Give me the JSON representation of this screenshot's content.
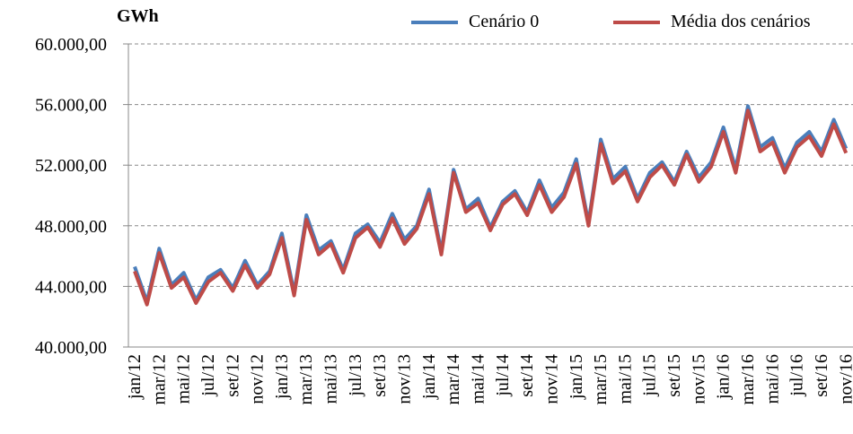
{
  "chart_data": {
    "type": "line",
    "title": "GWh",
    "categories": [
      "jan/12",
      null,
      "mar/12",
      null,
      "mai/12",
      null,
      "jul/12",
      null,
      "set/12",
      null,
      "nov/12",
      null,
      "jan/13",
      null,
      "mar/13",
      null,
      "mai/13",
      null,
      "jul/13",
      null,
      "set/13",
      null,
      "nov/13",
      null,
      "jan/14",
      null,
      "mar/14",
      null,
      "mai/14",
      null,
      "jul/14",
      null,
      "set/14",
      null,
      "nov/14",
      null,
      "jan/15",
      null,
      "mar/15",
      null,
      "mai/15",
      null,
      "jul/15",
      null,
      "set/15",
      null,
      "nov/15",
      null,
      "jan/16",
      null,
      "mar/16",
      null,
      "mai/16",
      null,
      "jul/16",
      null,
      "set/16",
      null,
      "nov/16"
    ],
    "series": [
      {
        "name": "Cenário 0",
        "color": "#4a7ebb",
        "values": [
          45300,
          43000,
          46500,
          44100,
          44900,
          43100,
          44600,
          45100,
          43900,
          45700,
          44100,
          45000,
          47500,
          43600,
          48700,
          46400,
          47000,
          45100,
          47500,
          48100,
          46900,
          48800,
          47100,
          48000,
          50400,
          46300,
          51700,
          49100,
          49800,
          47900,
          49600,
          50300,
          48900,
          51000,
          49200,
          50200,
          52400,
          48200,
          53700,
          51100,
          51900,
          49800,
          51500,
          52200,
          50900,
          52900,
          51200,
          52200,
          54500,
          51800,
          55900,
          53200,
          53800,
          51800,
          53500,
          54200,
          52900,
          55000,
          53100
        ]
      },
      {
        "name": "Média dos cenários",
        "color": "#be4b48",
        "values": [
          45000,
          42800,
          46200,
          43900,
          44600,
          42900,
          44300,
          44900,
          43700,
          45400,
          43900,
          44800,
          47200,
          43400,
          48400,
          46100,
          46800,
          44900,
          47200,
          47900,
          46600,
          48500,
          46800,
          47800,
          50100,
          46100,
          51500,
          48900,
          49500,
          47700,
          49400,
          50100,
          48700,
          50700,
          48900,
          49900,
          52100,
          48000,
          53400,
          50800,
          51600,
          49600,
          51200,
          52000,
          50700,
          52700,
          50900,
          51900,
          54200,
          51500,
          55600,
          52900,
          53500,
          51500,
          53200,
          53900,
          52600,
          54700,
          52800
        ]
      }
    ],
    "ylim": [
      40000,
      60000
    ],
    "yticks": [
      {
        "value": 40000,
        "label": "40.000,00"
      },
      {
        "value": 44000,
        "label": "44.000,00"
      },
      {
        "value": 48000,
        "label": "48.000,00"
      },
      {
        "value": 52000,
        "label": "52.000,00"
      },
      {
        "value": 56000,
        "label": "56.000,00"
      },
      {
        "value": 60000,
        "label": "60.000,00"
      }
    ],
    "grid": true
  }
}
